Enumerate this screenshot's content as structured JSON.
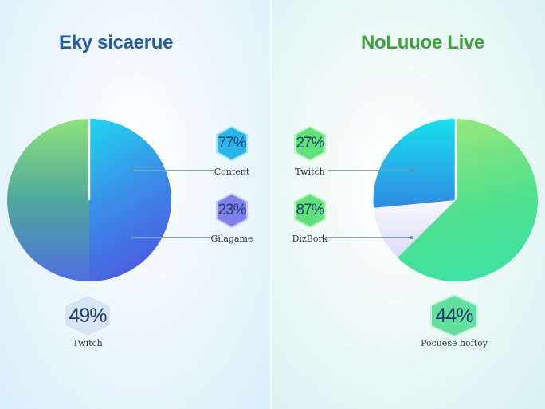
{
  "chart_data": [
    {
      "type": "pie",
      "title": "Eky sicaerue",
      "slices": [
        {
          "label": "Content",
          "value": 50,
          "color": "#2e9fe8"
        },
        {
          "label": "Gilagame",
          "value": 50,
          "color": "#5aa88e"
        }
      ],
      "annotations": [
        {
          "badge": "77%",
          "label": "Content",
          "color": "#29b6ea"
        },
        {
          "badge": "23%",
          "label": "Gilagame",
          "color": "#7e7fe8"
        },
        {
          "badge": "49%",
          "label": "Twitch",
          "color": "#d7e4f6"
        }
      ]
    },
    {
      "type": "pie",
      "title": "NoLuuoe Live",
      "slices": [
        {
          "label": "Twitch",
          "value": 25,
          "color": "#23b6ea"
        },
        {
          "label": "DizBork",
          "value": 10,
          "color": "#eef0fb"
        },
        {
          "label": "Pocuese hoftoy",
          "value": 65,
          "color": "#4fe09a"
        }
      ],
      "annotations": [
        {
          "badge": "27%",
          "label": "Twitch",
          "color": "#5ee17a"
        },
        {
          "badge": "87%",
          "label": "DizBork",
          "color": "#5ee17a"
        },
        {
          "badge": "44%",
          "label": "Pocuese hoftoy",
          "color": "#63dfa0"
        }
      ]
    }
  ]
}
